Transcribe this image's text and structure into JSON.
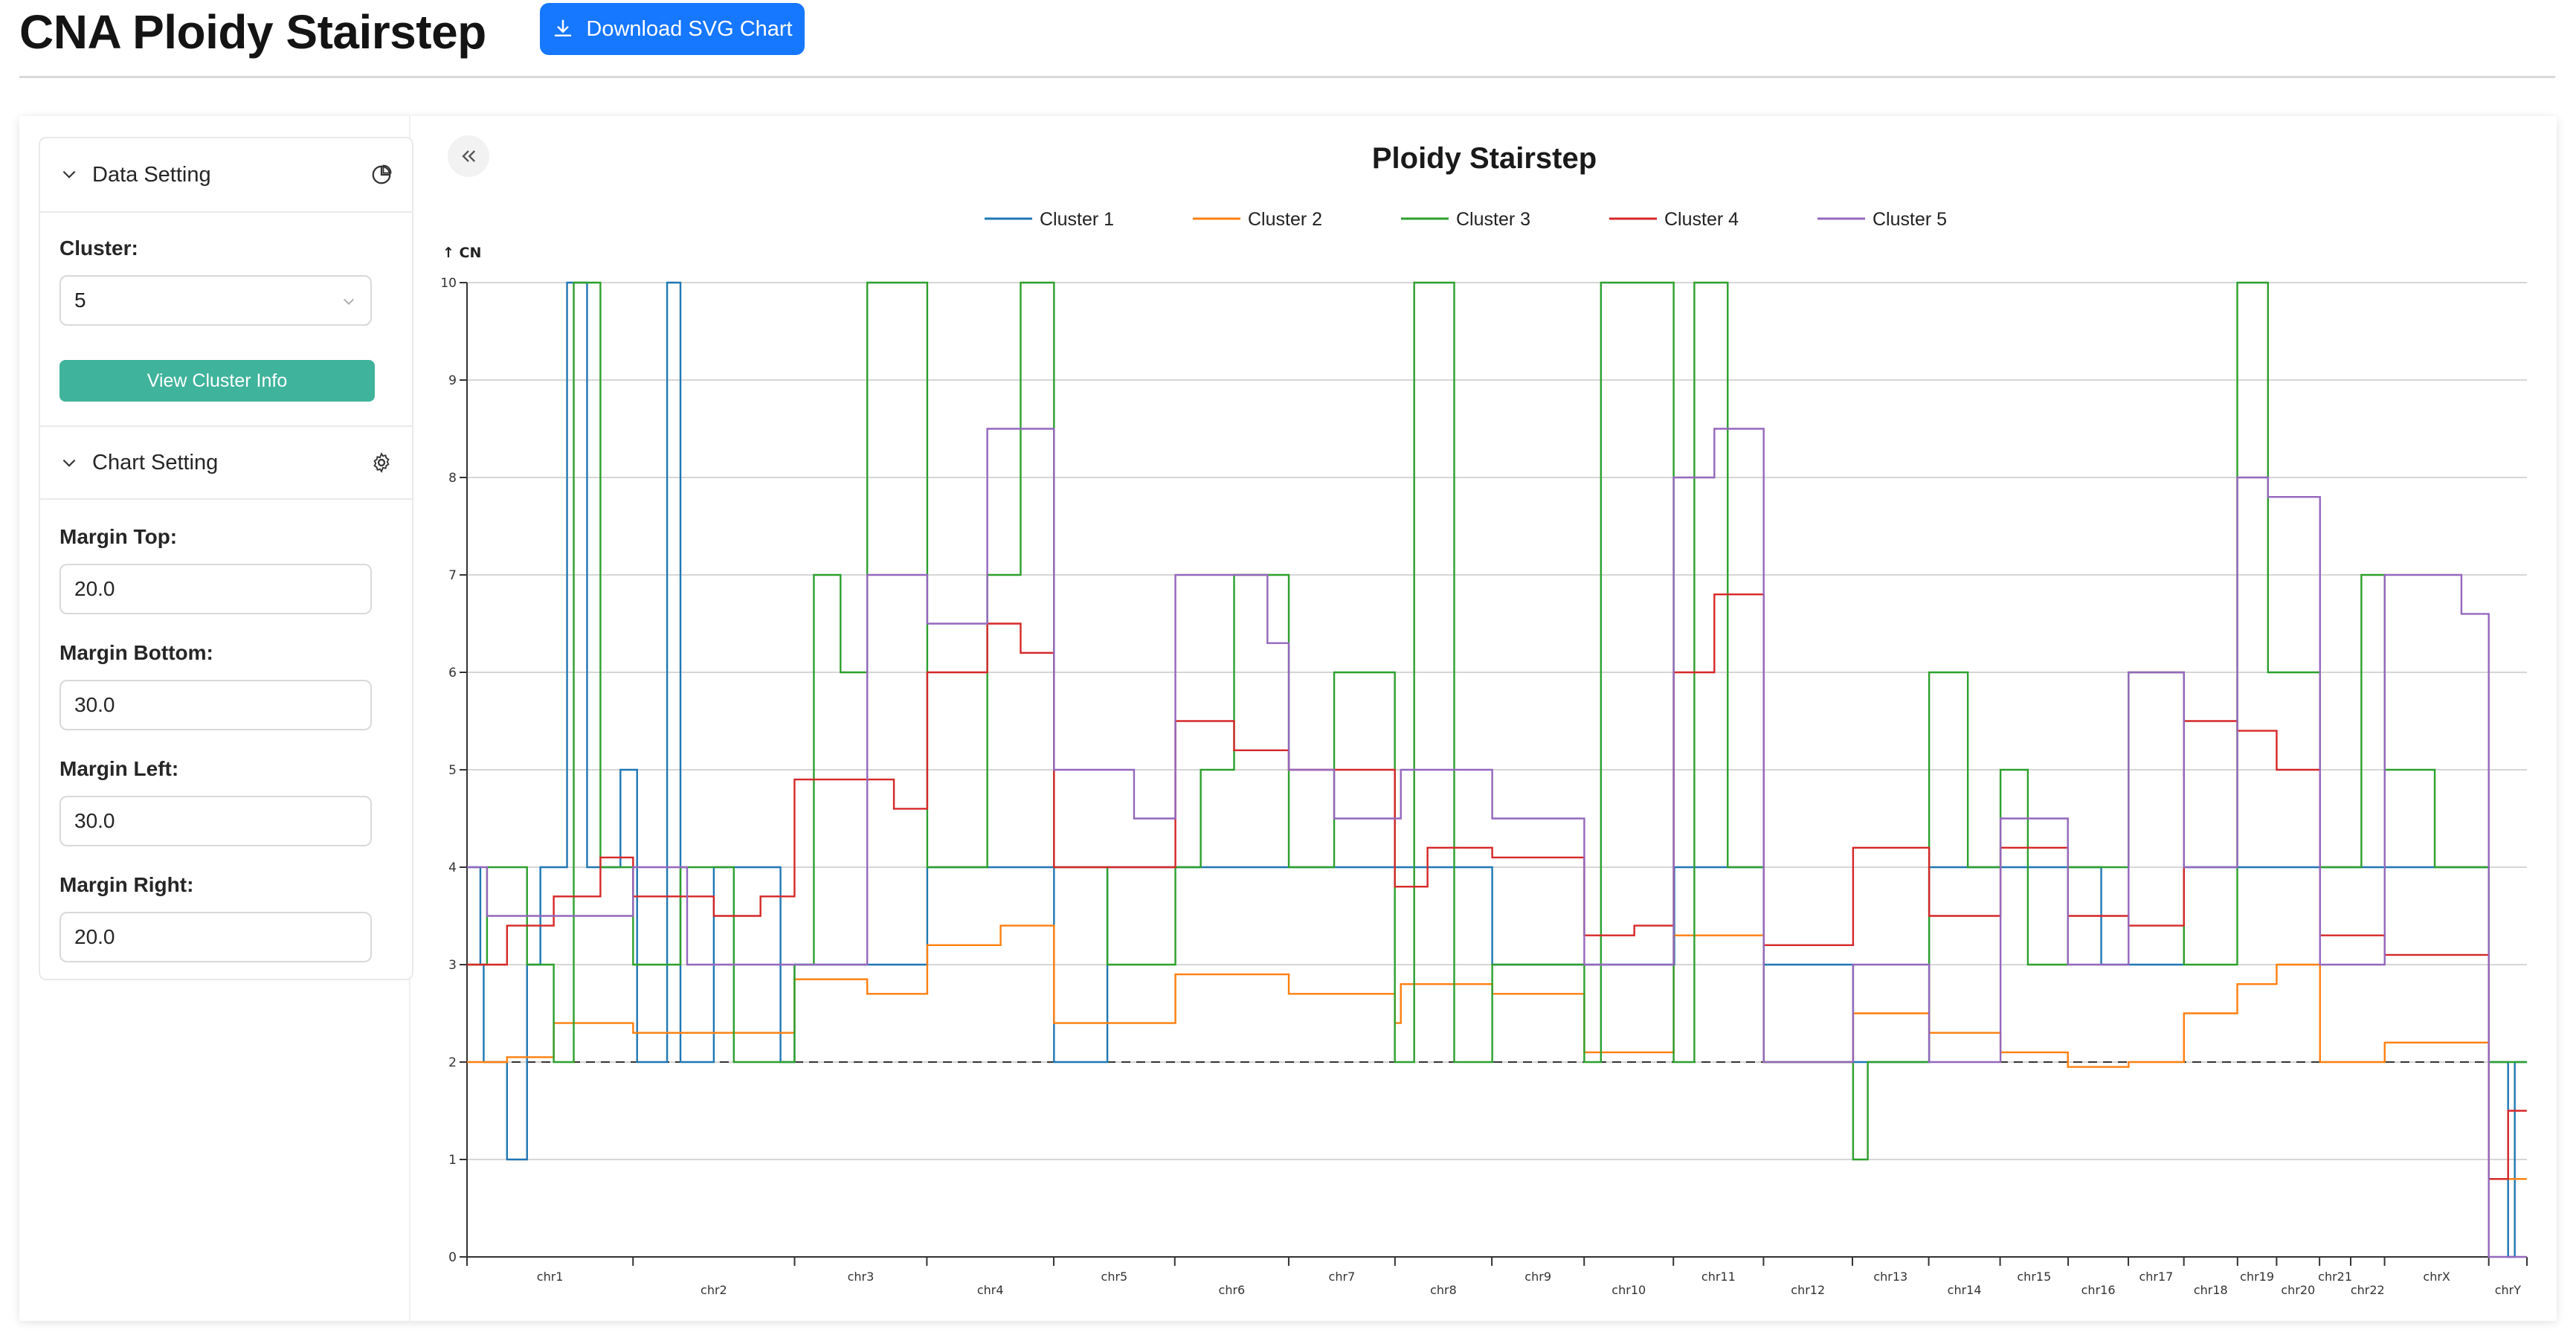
{
  "header": {
    "title": "CNA Ploidy Stairstep",
    "download_label": "Download SVG Chart"
  },
  "sidebar": {
    "data_setting": {
      "title": "Data Setting",
      "cluster_label": "Cluster:",
      "cluster_value": "5",
      "view_button": "View Cluster Info"
    },
    "chart_setting": {
      "title": "Chart Setting",
      "fields": [
        {
          "label": "Margin Top:",
          "value": "20.0"
        },
        {
          "label": "Margin Bottom:",
          "value": "30.0"
        },
        {
          "label": "Margin Left:",
          "value": "30.0"
        },
        {
          "label": "Margin Right:",
          "value": "20.0"
        }
      ]
    }
  },
  "colors": {
    "accent": "#1677ff",
    "teal_button": "#3fb39b",
    "cluster_colors": [
      "#1f77b4",
      "#ff7f0e",
      "#2ca02c",
      "#d62728",
      "#9467bd"
    ]
  },
  "chart_data": {
    "type": "line",
    "title": "Ploidy Stairstep",
    "ylabel": "↑ CN",
    "xlabel": "",
    "ylim": [
      0,
      10
    ],
    "yticks": [
      0,
      1,
      2,
      3,
      4,
      5,
      6,
      7,
      8,
      9,
      10
    ],
    "grid": true,
    "legend_position": "top-center",
    "baseline": 2,
    "chromosomes": [
      "chr1",
      "chr2",
      "chr3",
      "chr4",
      "chr5",
      "chr6",
      "chr7",
      "chr8",
      "chr9",
      "chr10",
      "chr11",
      "chr12",
      "chr13",
      "chr14",
      "chr15",
      "chr16",
      "chr17",
      "chr18",
      "chr19",
      "chr20",
      "chr21",
      "chr22",
      "chrX",
      "chrY"
    ],
    "chrom_bounds": [
      0,
      248.9,
      491.1,
      689.4,
      879.6,
      1061.1,
      1231.9,
      1391.2,
      1536.4,
      1674.8,
      1808.6,
      1943.7,
      2077.0,
      2191.4,
      2298.4,
      2400.4,
      2490.7,
      2573.9,
      2654.3,
      2712.9,
      2777.3,
      2824.0,
      2874.8,
      3031.0,
      3088.2
    ],
    "series": [
      {
        "name": "Cluster 1",
        "color": "#1f77b4",
        "steps": [
          [
            0,
            4
          ],
          [
            20,
            3
          ],
          [
            25,
            2
          ],
          [
            60,
            1
          ],
          [
            90,
            3
          ],
          [
            110,
            4
          ],
          [
            150,
            10
          ],
          [
            180,
            4
          ],
          [
            230,
            5
          ],
          [
            255,
            2
          ],
          [
            300,
            10
          ],
          [
            320,
            2
          ],
          [
            370,
            4
          ],
          [
            470,
            2
          ],
          [
            491,
            3
          ],
          [
            690,
            4
          ],
          [
            880,
            2
          ],
          [
            960,
            4
          ],
          [
            1062,
            4
          ],
          [
            1400,
            4
          ],
          [
            1537,
            3
          ],
          [
            1675,
            3
          ],
          [
            1810,
            4
          ],
          [
            1944,
            3
          ],
          [
            2078,
            2
          ],
          [
            2192,
            4
          ],
          [
            2299,
            4
          ],
          [
            2450,
            3
          ],
          [
            2574,
            4
          ],
          [
            2713,
            4
          ],
          [
            2778,
            4
          ],
          [
            2875,
            4
          ],
          [
            3031,
            2
          ],
          [
            3060,
            0
          ],
          [
            3070,
            2
          ],
          [
            3088,
            2
          ]
        ]
      },
      {
        "name": "Cluster 2",
        "color": "#ff7f0e",
        "steps": [
          [
            0,
            2
          ],
          [
            60,
            2.05
          ],
          [
            130,
            2.4
          ],
          [
            249,
            2.3
          ],
          [
            491,
            2.85
          ],
          [
            600,
            2.7
          ],
          [
            690,
            3.2
          ],
          [
            800,
            3.4
          ],
          [
            880,
            2.4
          ],
          [
            1062,
            2.9
          ],
          [
            1232,
            2.7
          ],
          [
            1391,
            2.4
          ],
          [
            1400,
            2.8
          ],
          [
            1537,
            2.7
          ],
          [
            1675,
            2.1
          ],
          [
            1809,
            3.3
          ],
          [
            1944,
            2.0
          ],
          [
            2078,
            2.5
          ],
          [
            2192,
            2.3
          ],
          [
            2299,
            2.1
          ],
          [
            2400,
            1.95
          ],
          [
            2491,
            2.0
          ],
          [
            2574,
            2.5
          ],
          [
            2654,
            2.8
          ],
          [
            2713,
            3.0
          ],
          [
            2778,
            2.0
          ],
          [
            2875,
            2.2
          ],
          [
            3031,
            0.8
          ],
          [
            3088,
            0.8
          ]
        ]
      },
      {
        "name": "Cluster 3",
        "color": "#2ca02c",
        "steps": [
          [
            0,
            3
          ],
          [
            30,
            4
          ],
          [
            90,
            3
          ],
          [
            130,
            2
          ],
          [
            160,
            10
          ],
          [
            200,
            4
          ],
          [
            249,
            3
          ],
          [
            320,
            4
          ],
          [
            400,
            2
          ],
          [
            491,
            3
          ],
          [
            520,
            7
          ],
          [
            560,
            6
          ],
          [
            600,
            10
          ],
          [
            690,
            4
          ],
          [
            780,
            7
          ],
          [
            830,
            10
          ],
          [
            880,
            4
          ],
          [
            960,
            3
          ],
          [
            1062,
            4
          ],
          [
            1100,
            5
          ],
          [
            1150,
            7
          ],
          [
            1232,
            4
          ],
          [
            1300,
            6
          ],
          [
            1391,
            2
          ],
          [
            1420,
            10
          ],
          [
            1480,
            2
          ],
          [
            1537,
            3
          ],
          [
            1675,
            2
          ],
          [
            1700,
            10
          ],
          [
            1809,
            2
          ],
          [
            1840,
            10
          ],
          [
            1890,
            4
          ],
          [
            1944,
            2
          ],
          [
            2078,
            1
          ],
          [
            2100,
            2
          ],
          [
            2192,
            6
          ],
          [
            2250,
            4
          ],
          [
            2299,
            5
          ],
          [
            2340,
            3
          ],
          [
            2400,
            4
          ],
          [
            2491,
            6
          ],
          [
            2574,
            3
          ],
          [
            2654,
            10
          ],
          [
            2700,
            6
          ],
          [
            2778,
            4
          ],
          [
            2840,
            7
          ],
          [
            2875,
            5
          ],
          [
            2950,
            4
          ],
          [
            3031,
            2
          ],
          [
            3088,
            2
          ]
        ]
      },
      {
        "name": "Cluster 4",
        "color": "#d62728",
        "steps": [
          [
            0,
            3
          ],
          [
            60,
            3.4
          ],
          [
            130,
            3.7
          ],
          [
            200,
            4.1
          ],
          [
            249,
            3.7
          ],
          [
            370,
            3.5
          ],
          [
            440,
            3.7
          ],
          [
            491,
            4.9
          ],
          [
            640,
            4.6
          ],
          [
            690,
            6.0
          ],
          [
            780,
            6.5
          ],
          [
            830,
            6.2
          ],
          [
            880,
            4.0
          ],
          [
            1062,
            5.5
          ],
          [
            1150,
            5.2
          ],
          [
            1232,
            5.0
          ],
          [
            1391,
            3.8
          ],
          [
            1440,
            4.2
          ],
          [
            1537,
            4.1
          ],
          [
            1675,
            3.3
          ],
          [
            1750,
            3.4
          ],
          [
            1809,
            6.0
          ],
          [
            1870,
            6.8
          ],
          [
            1944,
            3.2
          ],
          [
            2078,
            4.2
          ],
          [
            2192,
            3.5
          ],
          [
            2299,
            4.2
          ],
          [
            2400,
            3.5
          ],
          [
            2491,
            3.4
          ],
          [
            2574,
            5.5
          ],
          [
            2654,
            5.4
          ],
          [
            2713,
            5.0
          ],
          [
            2778,
            3.3
          ],
          [
            2875,
            3.1
          ],
          [
            3031,
            0.8
          ],
          [
            3060,
            1.5
          ],
          [
            3088,
            1.5
          ]
        ]
      },
      {
        "name": "Cluster 5",
        "color": "#9467bd",
        "steps": [
          [
            0,
            4
          ],
          [
            30,
            3.5
          ],
          [
            249,
            4
          ],
          [
            330,
            3
          ],
          [
            491,
            3
          ],
          [
            600,
            7
          ],
          [
            690,
            6.5
          ],
          [
            780,
            8.5
          ],
          [
            880,
            5
          ],
          [
            1000,
            4.5
          ],
          [
            1062,
            7
          ],
          [
            1200,
            6.3
          ],
          [
            1232,
            5
          ],
          [
            1300,
            4.5
          ],
          [
            1391,
            4.5
          ],
          [
            1400,
            5
          ],
          [
            1537,
            4.5
          ],
          [
            1675,
            3
          ],
          [
            1809,
            8
          ],
          [
            1870,
            8.5
          ],
          [
            1944,
            2
          ],
          [
            2078,
            3
          ],
          [
            2192,
            2
          ],
          [
            2299,
            4.5
          ],
          [
            2400,
            3
          ],
          [
            2491,
            6
          ],
          [
            2574,
            4
          ],
          [
            2654,
            8
          ],
          [
            2700,
            7.8
          ],
          [
            2778,
            3
          ],
          [
            2875,
            7
          ],
          [
            2990,
            6.6
          ],
          [
            3031,
            0
          ],
          [
            3088,
            0
          ]
        ]
      }
    ]
  }
}
